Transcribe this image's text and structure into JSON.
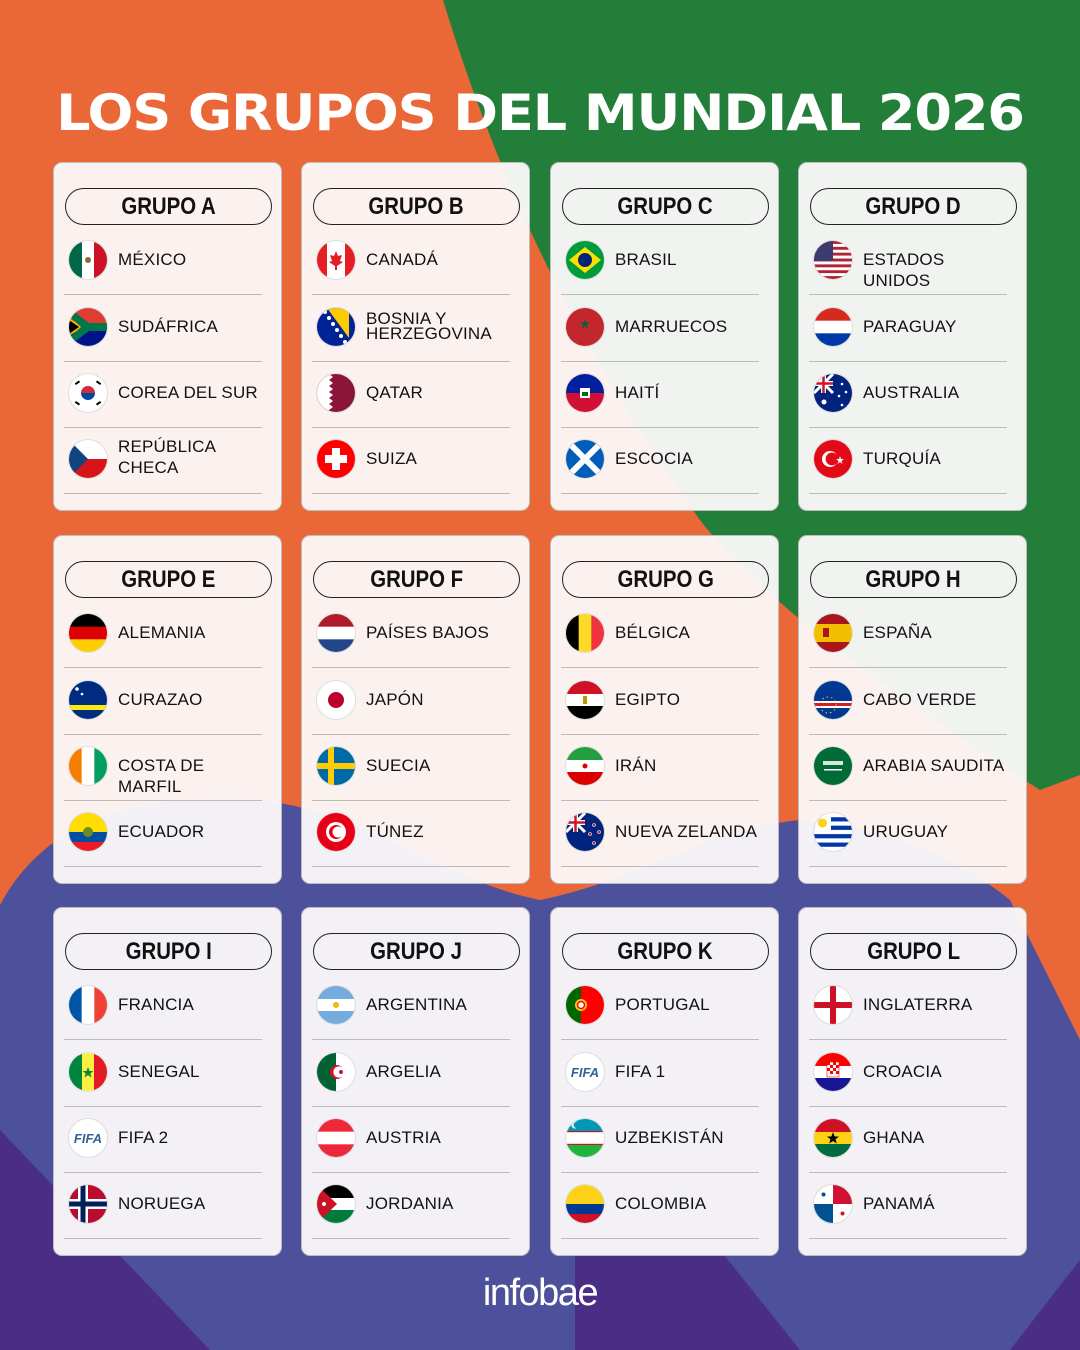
{
  "title": "LOS GRUPOS DEL MUNDIAL 2026",
  "logo": "infobae",
  "colors": {
    "orange": "#EA6737",
    "green": "#237E3A",
    "blue": "#4D509A",
    "purple": "#4A2E85"
  },
  "groups": [
    {
      "name": "GRUPO A",
      "teams": [
        {
          "name": "MÉXICO",
          "flag": "mexico"
        },
        {
          "name": "SUDÁFRICA",
          "flag": "south-africa"
        },
        {
          "name": "COREA DEL SUR",
          "flag": "south-korea"
        },
        {
          "name": "REPÚBLICA\nCHECA",
          "flag": "czech-republic"
        }
      ]
    },
    {
      "name": "GRUPO B",
      "teams": [
        {
          "name": "CANADÁ",
          "flag": "canada"
        },
        {
          "name": "BOSNIA Y\nHERZEGOVINA",
          "flag": "bosnia"
        },
        {
          "name": "QATAR",
          "flag": "qatar"
        },
        {
          "name": "SUIZA",
          "flag": "switzerland"
        }
      ]
    },
    {
      "name": "GRUPO C",
      "teams": [
        {
          "name": "BRASIL",
          "flag": "brazil"
        },
        {
          "name": "MARRUECOS",
          "flag": "morocco"
        },
        {
          "name": "HAITÍ",
          "flag": "haiti"
        },
        {
          "name": "ESCOCIA",
          "flag": "scotland"
        }
      ]
    },
    {
      "name": "GRUPO D",
      "teams": [
        {
          "name": "ESTADOS UNIDOS",
          "flag": "usa"
        },
        {
          "name": "PARAGUAY",
          "flag": "paraguay"
        },
        {
          "name": "AUSTRALIA",
          "flag": "australia"
        },
        {
          "name": "TURQUÍA",
          "flag": "turkey"
        }
      ]
    },
    {
      "name": "GRUPO E",
      "teams": [
        {
          "name": "ALEMANIA",
          "flag": "germany"
        },
        {
          "name": "CURAZAO",
          "flag": "curacao"
        },
        {
          "name": "COSTA DE MARFIL",
          "flag": "ivory-coast"
        },
        {
          "name": "ECUADOR",
          "flag": "ecuador"
        }
      ]
    },
    {
      "name": "GRUPO F",
      "teams": [
        {
          "name": "PAÍSES BAJOS",
          "flag": "netherlands"
        },
        {
          "name": "JAPÓN",
          "flag": "japan"
        },
        {
          "name": "SUECIA",
          "flag": "sweden"
        },
        {
          "name": "TÚNEZ",
          "flag": "tunisia"
        }
      ]
    },
    {
      "name": "GRUPO G",
      "teams": [
        {
          "name": "BÉLGICA",
          "flag": "belgium"
        },
        {
          "name": "EGIPTO",
          "flag": "egypt"
        },
        {
          "name": "IRÁN",
          "flag": "iran"
        },
        {
          "name": "NUEVA ZELANDA",
          "flag": "new-zealand"
        }
      ]
    },
    {
      "name": "GRUPO H",
      "teams": [
        {
          "name": "ESPAÑA",
          "flag": "spain"
        },
        {
          "name": "CABO VERDE",
          "flag": "cape-verde"
        },
        {
          "name": "ARABIA SAUDITA",
          "flag": "saudi-arabia"
        },
        {
          "name": "URUGUAY",
          "flag": "uruguay"
        }
      ]
    },
    {
      "name": "GRUPO I",
      "teams": [
        {
          "name": "FRANCIA",
          "flag": "france"
        },
        {
          "name": "SENEGAL",
          "flag": "senegal"
        },
        {
          "name": "FIFA 2",
          "flag": "fifa"
        },
        {
          "name": "NORUEGA",
          "flag": "norway"
        }
      ]
    },
    {
      "name": "GRUPO J",
      "teams": [
        {
          "name": "ARGENTINA",
          "flag": "argentina"
        },
        {
          "name": "ARGELIA",
          "flag": "algeria"
        },
        {
          "name": "AUSTRIA",
          "flag": "austria"
        },
        {
          "name": "JORDANIA",
          "flag": "jordan"
        }
      ]
    },
    {
      "name": "GRUPO K",
      "teams": [
        {
          "name": "PORTUGAL",
          "flag": "portugal"
        },
        {
          "name": "FIFA 1",
          "flag": "fifa"
        },
        {
          "name": "UZBEKISTÁN",
          "flag": "uzbekistan"
        },
        {
          "name": "COLOMBIA",
          "flag": "colombia"
        }
      ]
    },
    {
      "name": "GRUPO L",
      "teams": [
        {
          "name": "INGLATERRA",
          "flag": "england"
        },
        {
          "name": "CROACIA",
          "flag": "croatia"
        },
        {
          "name": "GHANA",
          "flag": "ghana"
        },
        {
          "name": "PANAMÁ",
          "flag": "panama"
        }
      ]
    }
  ]
}
